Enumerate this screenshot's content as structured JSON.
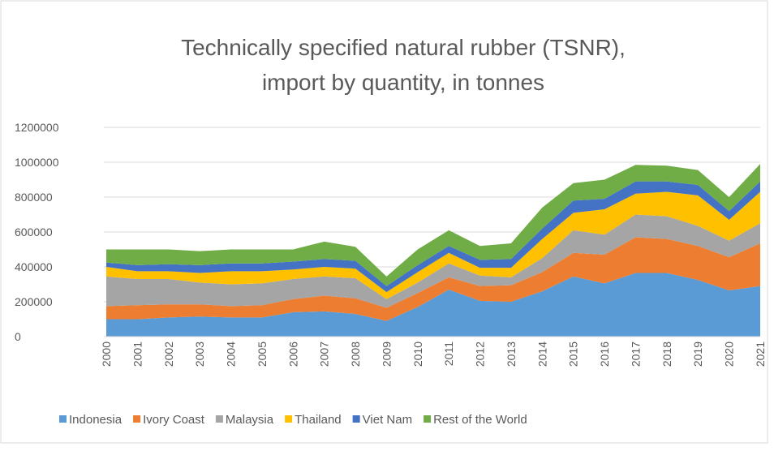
{
  "chart_data": {
    "type": "stacked_area",
    "title": [
      "Technically specified natural rubber (TSNR),",
      "import by quantity, in tonnes"
    ],
    "categories": [
      "2000",
      "2001",
      "2002",
      "2003",
      "2004",
      "2005",
      "2006",
      "2007",
      "2008",
      "2009",
      "2010",
      "2011",
      "2012",
      "2013",
      "2014",
      "2015",
      "2016",
      "2017",
      "2018",
      "2019",
      "2020",
      "2021"
    ],
    "series": [
      {
        "name": "Indonesia",
        "color": "#5b9bd5",
        "values": [
          100000,
          100000,
          110000,
          115000,
          110000,
          110000,
          140000,
          145000,
          130000,
          90000,
          170000,
          270000,
          205000,
          200000,
          260000,
          345000,
          305000,
          365000,
          365000,
          325000,
          265000,
          290000
        ]
      },
      {
        "name": "Ivory Coast",
        "color": "#ed7d31",
        "values": [
          75000,
          80000,
          75000,
          70000,
          65000,
          70000,
          75000,
          90000,
          90000,
          75000,
          80000,
          70000,
          85000,
          95000,
          110000,
          135000,
          165000,
          205000,
          195000,
          195000,
          190000,
          245000
        ]
      },
      {
        "name": "Malaysia",
        "color": "#a5a5a5",
        "values": [
          170000,
          150000,
          145000,
          125000,
          125000,
          125000,
          115000,
          110000,
          115000,
          50000,
          60000,
          80000,
          60000,
          45000,
          80000,
          130000,
          115000,
          130000,
          130000,
          115000,
          95000,
          115000
        ]
      },
      {
        "name": "Thailand",
        "color": "#ffc000",
        "values": [
          55000,
          45000,
          45000,
          55000,
          75000,
          70000,
          55000,
          55000,
          55000,
          40000,
          60000,
          60000,
          45000,
          55000,
          110000,
          100000,
          145000,
          120000,
          140000,
          175000,
          120000,
          180000
        ]
      },
      {
        "name": "Viet Nam",
        "color": "#4472c4",
        "values": [
          25000,
          35000,
          40000,
          45000,
          45000,
          45000,
          45000,
          45000,
          45000,
          35000,
          40000,
          40000,
          45000,
          50000,
          60000,
          70000,
          60000,
          70000,
          60000,
          60000,
          50000,
          60000
        ]
      },
      {
        "name": "Rest of the World",
        "color": "#70ad47",
        "values": [
          75000,
          90000,
          85000,
          80000,
          80000,
          80000,
          70000,
          100000,
          80000,
          55000,
          90000,
          90000,
          80000,
          90000,
          120000,
          100000,
          110000,
          95000,
          90000,
          85000,
          80000,
          100000
        ]
      }
    ],
    "ylim": [
      0,
      1200000
    ],
    "yticks": [
      0,
      200000,
      400000,
      600000,
      800000,
      1000000,
      1200000
    ],
    "grid": true,
    "legend": "bottom"
  }
}
